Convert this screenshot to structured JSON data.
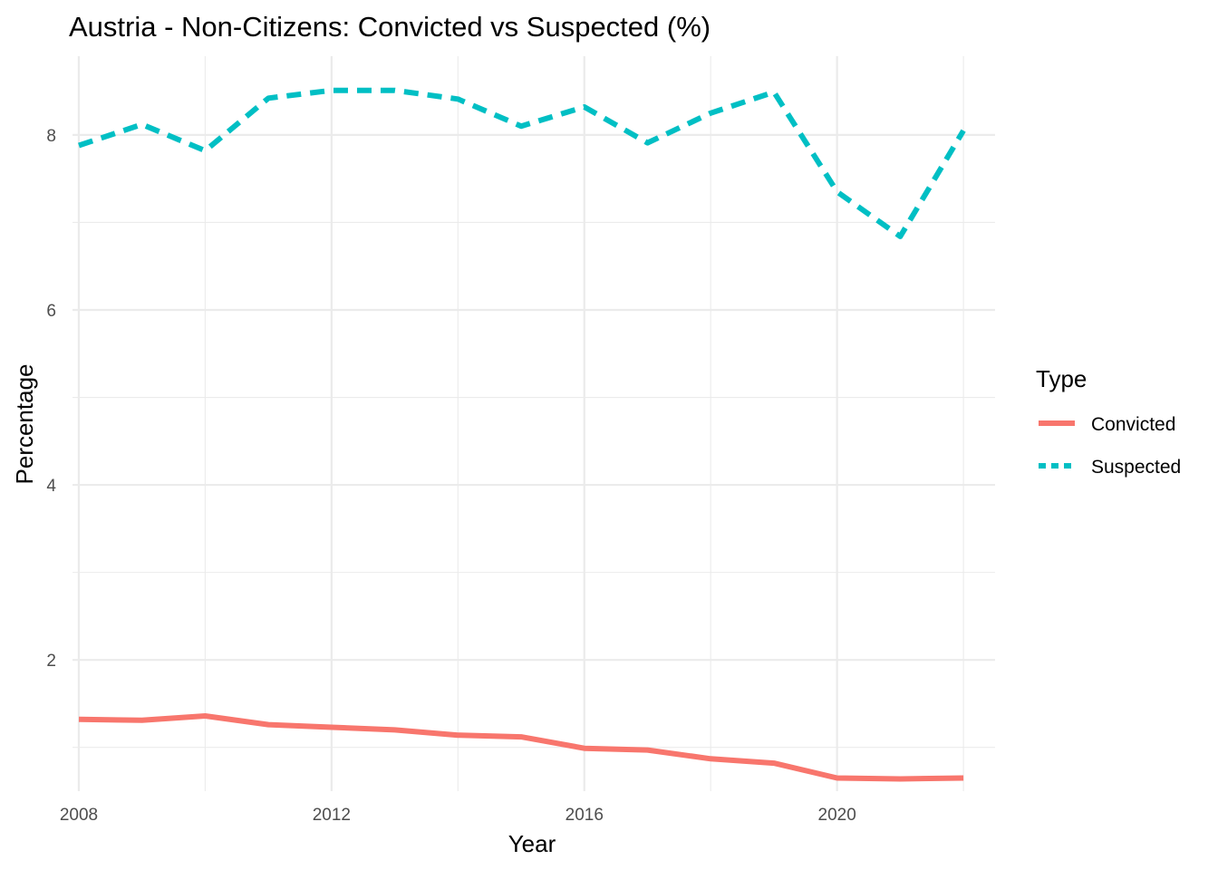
{
  "chart_data": {
    "type": "line",
    "title": "Austria - Non-Citizens: Convicted vs Suspected (%)",
    "xlabel": "Year",
    "ylabel": "Percentage",
    "x": [
      2008,
      2009,
      2010,
      2011,
      2012,
      2013,
      2014,
      2015,
      2016,
      2017,
      2018,
      2019,
      2020,
      2021,
      2022
    ],
    "series": [
      {
        "name": "Convicted",
        "color": "#F8766D",
        "dash": "solid",
        "values": [
          1.32,
          1.31,
          1.36,
          1.26,
          1.23,
          1.2,
          1.14,
          1.12,
          0.99,
          0.97,
          0.87,
          0.82,
          0.65,
          0.64,
          0.65
        ]
      },
      {
        "name": "Suspected",
        "color": "#00BFC4",
        "dash": "dashed",
        "values": [
          7.88,
          8.12,
          7.82,
          8.42,
          8.51,
          8.51,
          8.41,
          8.1,
          8.32,
          7.91,
          8.25,
          8.49,
          7.35,
          6.84,
          8.05
        ]
      }
    ],
    "xlim": [
      2007.9,
      2022.5
    ],
    "ylim": [
      0.5,
      8.9
    ],
    "xticks": [
      2008,
      2012,
      2016,
      2020
    ],
    "xtick_labels": [
      "2008",
      "2012",
      "2016",
      "2020"
    ],
    "yticks": [
      2,
      4,
      6,
      8
    ],
    "ytick_labels": [
      "2",
      "4",
      "6",
      "8"
    ],
    "x_minor": [
      2010,
      2014,
      2018,
      2022
    ],
    "y_minor": [
      1,
      3,
      5,
      7
    ],
    "grid": true,
    "legend": {
      "title": "Type",
      "position": "right"
    }
  }
}
